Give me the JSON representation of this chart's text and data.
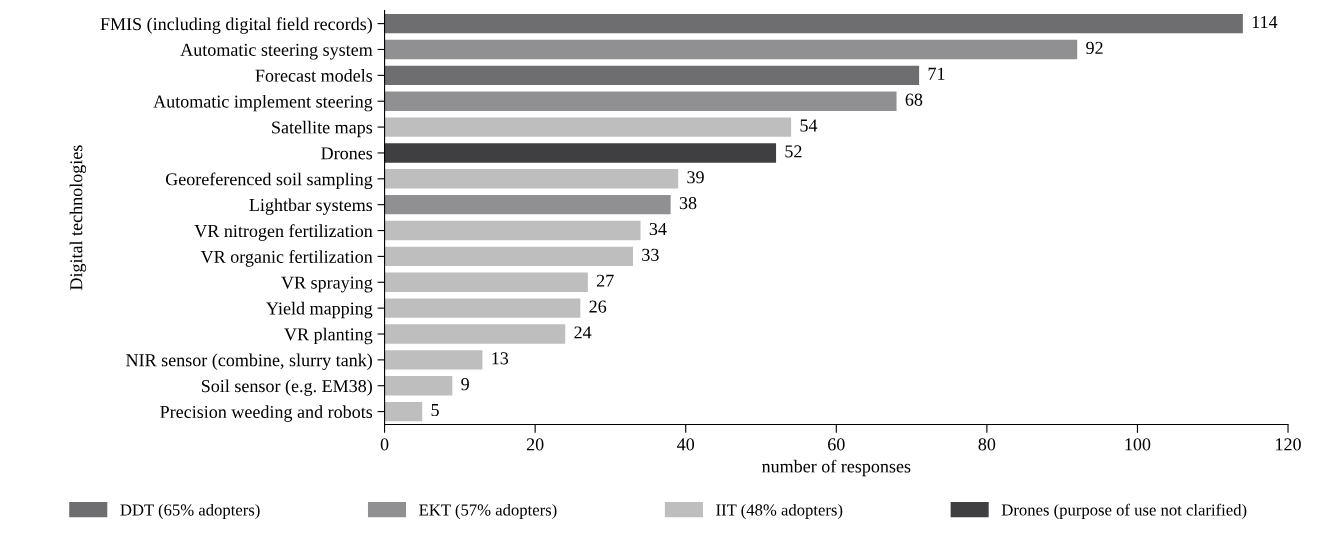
{
  "chart_data": {
    "type": "bar",
    "orientation": "horizontal",
    "xlabel": "number of responses",
    "ylabel": "Digital technologies",
    "categories": [
      "FMIS (including digital field records)",
      "Automatic steering system",
      "Forecast models",
      "Automatic implement steering",
      "Satellite maps",
      "Drones",
      "Georeferenced soil sampling",
      "Lightbar systems",
      "VR nitrogen fertilization",
      "VR organic fertilization",
      "VR spraying",
      "Yield mapping",
      "VR planting",
      "NIR sensor (combine, slurry tank)",
      "Soil sensor (e.g. EM38)",
      "Precision weeding and robots"
    ],
    "series": [
      {
        "name": "DDT (65% adopters)",
        "color": "#6e6e70",
        "values": [
          114,
          null,
          71,
          null,
          null,
          null,
          null,
          null,
          null,
          null,
          null,
          null,
          null,
          null,
          null,
          null
        ]
      },
      {
        "name": "EKT (57% adopters)",
        "color": "#909092",
        "values": [
          null,
          92,
          null,
          68,
          null,
          null,
          null,
          38,
          null,
          null,
          null,
          null,
          null,
          null,
          null,
          null
        ]
      },
      {
        "name": "IIT (48% adopters)",
        "color": "#bebebf",
        "values": [
          null,
          null,
          null,
          null,
          54,
          null,
          39,
          null,
          34,
          33,
          27,
          26,
          24,
          13,
          9,
          5
        ]
      },
      {
        "name": "Drones (purpose of use not clarified)",
        "color": "#3f3f41",
        "values": [
          null,
          null,
          null,
          null,
          null,
          52,
          null,
          null,
          null,
          null,
          null,
          null,
          null,
          null,
          null,
          null
        ]
      }
    ],
    "xlim": [
      0,
      120
    ],
    "xticks": [
      0,
      20,
      40,
      60,
      80,
      100,
      120
    ],
    "data_labels": true,
    "legend": "bottom",
    "grid": false
  }
}
